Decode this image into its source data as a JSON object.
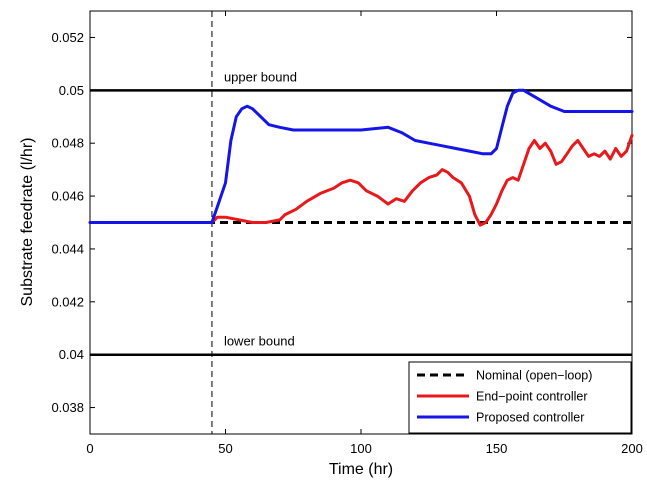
{
  "chart_data": {
    "type": "line",
    "title": "",
    "xlabel": "Time (hr)",
    "ylabel": "Substrate feedrate (l/hr)",
    "xlim": [
      0,
      200
    ],
    "ylim": [
      0.037,
      0.053
    ],
    "xticks": [
      0,
      50,
      100,
      150,
      200
    ],
    "xtick_labels": [
      "0",
      "50",
      "100",
      "150",
      "200"
    ],
    "yticks": [
      0.038,
      0.04,
      0.042,
      0.044,
      0.046,
      0.048,
      0.05,
      0.052
    ],
    "ytick_labels": [
      "0.038",
      "0.04",
      "0.042",
      "0.044",
      "0.046",
      "0.048",
      "0.05",
      "0.052"
    ],
    "grid": false,
    "legend_position": "bottom-right",
    "annotations": {
      "upper_bound": {
        "text": "upper bound",
        "value": 0.05
      },
      "lower_bound": {
        "text": "lower bound",
        "value": 0.04
      },
      "vertical_marker": {
        "x": 45
      }
    },
    "series": [
      {
        "name": "Nominal (open−loop)",
        "color": "#000000",
        "style": "dashed",
        "x": [
          0,
          45,
          200
        ],
        "y": [
          0.045,
          0.045,
          0.045
        ]
      },
      {
        "name": "End−point controller",
        "color": "#e8191b",
        "style": "solid",
        "x": [
          0,
          45,
          47,
          50,
          55,
          60,
          65,
          70,
          72,
          76,
          80,
          85,
          90,
          93,
          96,
          99,
          102,
          106,
          110,
          113,
          116,
          119,
          122,
          125,
          128,
          130,
          132,
          134,
          137,
          140,
          142,
          144,
          146,
          148,
          150,
          152,
          154,
          156,
          158,
          160,
          162,
          164,
          166,
          168,
          170,
          172,
          174,
          176,
          178,
          180,
          182,
          184,
          186,
          188,
          190,
          192,
          194,
          196,
          198,
          200
        ],
        "y": [
          0.045,
          0.045,
          0.0452,
          0.0452,
          0.0451,
          0.045,
          0.045,
          0.0451,
          0.0453,
          0.0455,
          0.0458,
          0.0461,
          0.0463,
          0.0465,
          0.0466,
          0.0465,
          0.0462,
          0.046,
          0.0457,
          0.0459,
          0.0458,
          0.0462,
          0.0465,
          0.0467,
          0.0468,
          0.047,
          0.0469,
          0.0467,
          0.0465,
          0.046,
          0.0453,
          0.0449,
          0.045,
          0.0453,
          0.0457,
          0.0462,
          0.0466,
          0.0467,
          0.0466,
          0.0472,
          0.0478,
          0.0481,
          0.0478,
          0.048,
          0.0477,
          0.0472,
          0.0473,
          0.0476,
          0.0479,
          0.0481,
          0.0478,
          0.0475,
          0.0476,
          0.0475,
          0.0477,
          0.0474,
          0.0478,
          0.0475,
          0.0477,
          0.0483
        ]
      },
      {
        "name": "Proposed controller",
        "color": "#1515e8",
        "style": "solid",
        "x": [
          0,
          45,
          47,
          50,
          52,
          54,
          56,
          58,
          60,
          63,
          66,
          70,
          75,
          80,
          90,
          100,
          110,
          115,
          120,
          125,
          130,
          135,
          140,
          145,
          148,
          150,
          152,
          154,
          156,
          158,
          160,
          165,
          170,
          175,
          180,
          190,
          200
        ],
        "y": [
          0.045,
          0.045,
          0.0456,
          0.0465,
          0.0481,
          0.049,
          0.0493,
          0.0494,
          0.0493,
          0.049,
          0.0487,
          0.0486,
          0.0485,
          0.0485,
          0.0485,
          0.0485,
          0.0486,
          0.0484,
          0.0481,
          0.048,
          0.0479,
          0.0478,
          0.0477,
          0.0476,
          0.0476,
          0.0478,
          0.0486,
          0.0494,
          0.0499,
          0.05,
          0.05,
          0.0497,
          0.0494,
          0.0492,
          0.0492,
          0.0492,
          0.0492
        ]
      }
    ]
  }
}
